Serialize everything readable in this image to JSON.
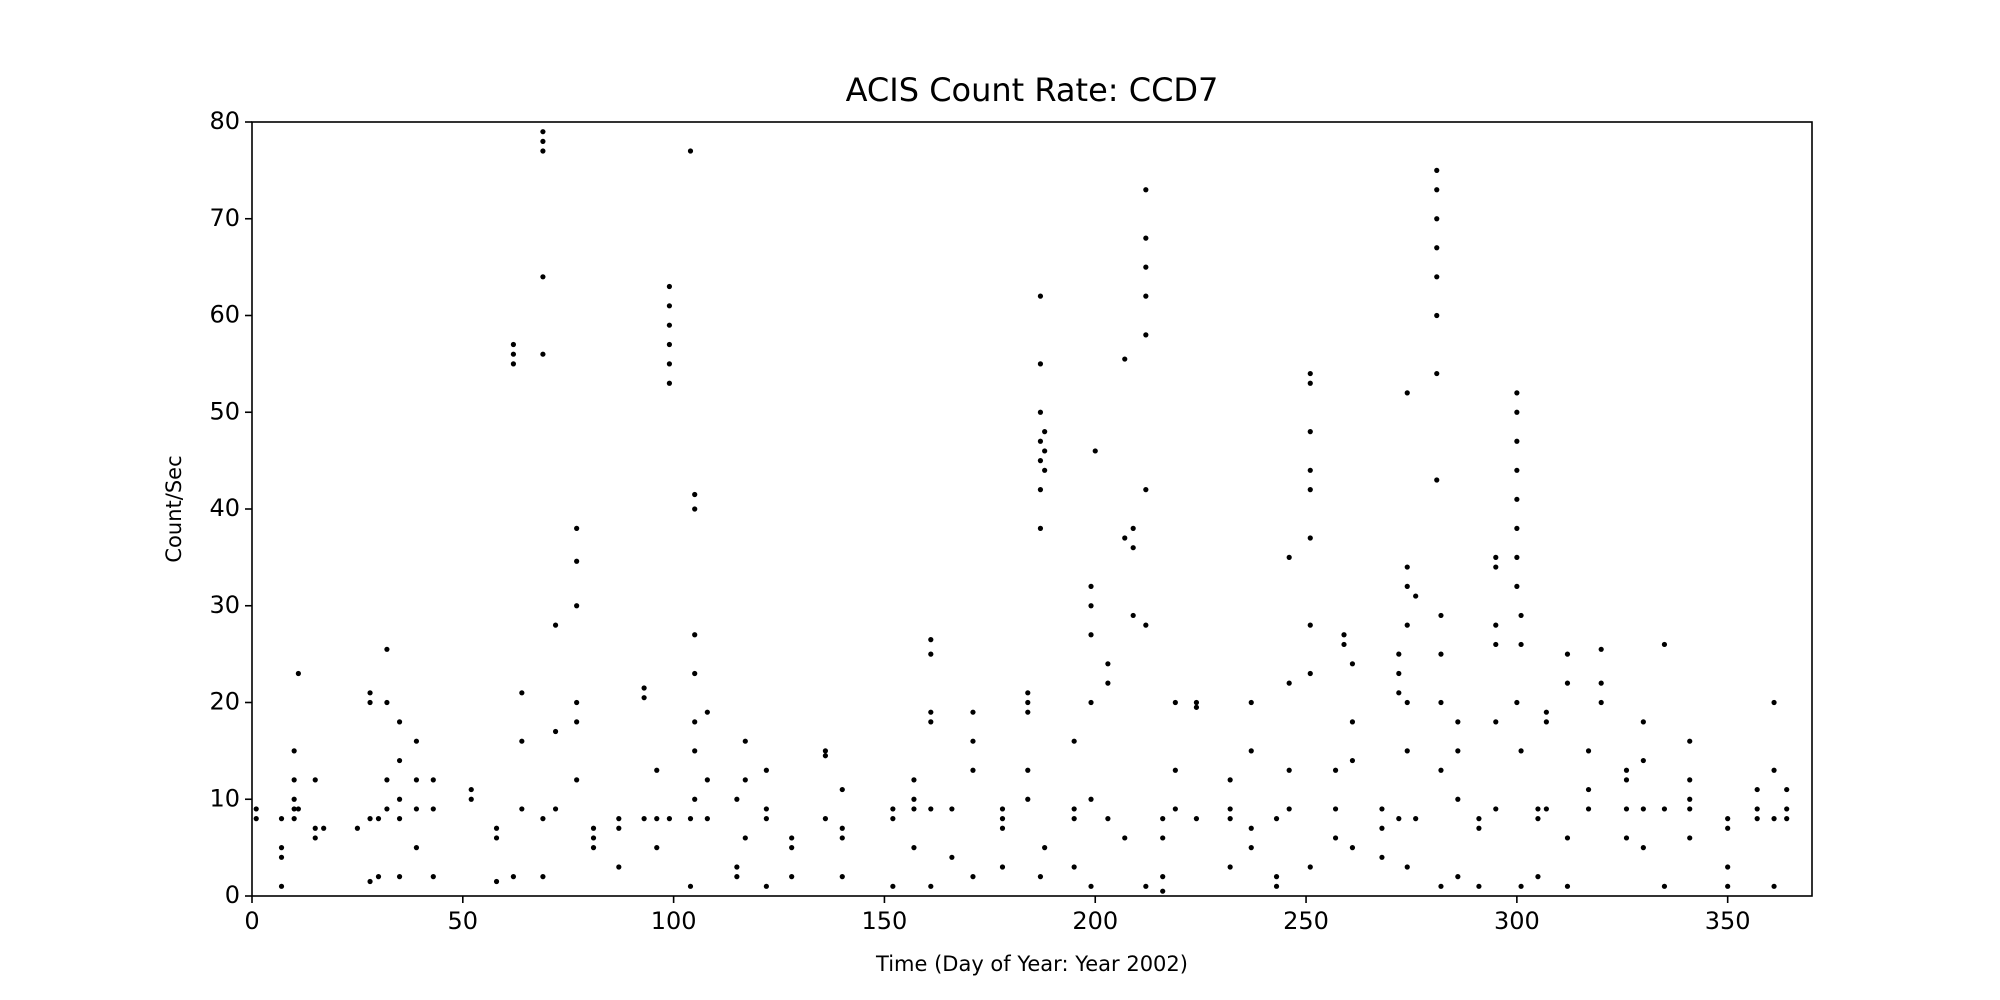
{
  "chart_data": {
    "type": "scatter",
    "title": "ACIS Count Rate: CCD7",
    "xlabel": "Time (Day of Year: Year 2002)",
    "ylabel": "Count/Sec",
    "xlim": [
      0,
      370
    ],
    "xticks": [
      0,
      50,
      100,
      150,
      200,
      250,
      300,
      350
    ],
    "ylim": [
      0,
      80
    ],
    "yticks": [
      0,
      10,
      20,
      30,
      40,
      50,
      60,
      70,
      80
    ],
    "color": "#000000",
    "x": [
      1,
      1,
      7,
      7,
      7,
      7,
      10,
      10,
      10,
      10,
      10,
      11,
      11,
      15,
      15,
      15,
      17,
      25,
      28,
      28,
      28,
      28,
      30,
      30,
      32,
      32,
      32,
      32,
      35,
      35,
      35,
      35,
      35,
      39,
      39,
      39,
      39,
      43,
      43,
      43,
      52,
      52,
      58,
      58,
      58,
      62,
      62,
      62,
      62,
      64,
      64,
      64,
      69,
      69,
      69,
      69,
      69,
      69,
      69,
      72,
      72,
      72,
      77,
      77,
      77,
      77,
      77,
      77,
      81,
      81,
      81,
      87,
      87,
      87,
      93,
      93,
      93,
      96,
      96,
      96,
      99,
      99,
      99,
      99,
      99,
      99,
      99,
      104,
      104,
      104,
      105,
      105,
      105,
      105,
      105,
      105,
      105,
      108,
      108,
      108,
      115,
      115,
      115,
      117,
      117,
      117,
      122,
      122,
      122,
      122,
      128,
      128,
      128,
      136,
      136,
      136,
      140,
      140,
      140,
      140,
      152,
      152,
      152,
      157,
      157,
      157,
      157,
      161,
      161,
      161,
      161,
      161,
      161,
      166,
      166,
      171,
      171,
      171,
      171,
      178,
      178,
      178,
      178,
      184,
      184,
      184,
      184,
      184,
      187,
      187,
      187,
      187,
      187,
      187,
      187,
      187,
      188,
      188,
      188,
      188,
      195,
      195,
      195,
      195,
      199,
      199,
      199,
      199,
      199,
      199,
      200,
      203,
      203,
      203,
      207,
      207,
      207,
      209,
      209,
      209,
      212,
      212,
      212,
      212,
      212,
      212,
      212,
      212,
      216,
      216,
      216,
      216,
      219,
      219,
      219,
      224,
      224,
      224,
      232,
      232,
      232,
      232,
      237,
      237,
      237,
      237,
      243,
      243,
      243,
      246,
      246,
      246,
      246,
      251,
      251,
      251,
      251,
      251,
      251,
      251,
      251,
      251,
      257,
      257,
      257,
      259,
      259,
      261,
      261,
      261,
      261,
      268,
      268,
      268,
      272,
      272,
      272,
      272,
      274,
      274,
      274,
      274,
      274,
      274,
      274,
      276,
      276,
      281,
      281,
      281,
      281,
      281,
      281,
      281,
      281,
      282,
      282,
      282,
      282,
      282,
      286,
      286,
      286,
      286,
      291,
      291,
      291,
      295,
      295,
      295,
      295,
      295,
      295,
      300,
      300,
      300,
      300,
      300,
      300,
      300,
      300,
      300,
      301,
      301,
      301,
      301,
      305,
      305,
      305,
      307,
      307,
      307,
      312,
      312,
      312,
      312,
      317,
      317,
      317,
      320,
      320,
      320,
      326,
      326,
      326,
      326,
      330,
      330,
      330,
      330,
      335,
      335,
      335,
      341,
      341,
      341,
      341,
      341,
      350,
      350,
      350,
      350,
      357,
      357,
      357,
      361,
      361,
      361,
      361,
      364,
      364,
      364
    ],
    "values": [
      8,
      9,
      4,
      5,
      1,
      8,
      8,
      9,
      10,
      12,
      15,
      23,
      9,
      6,
      7,
      12,
      7,
      7,
      8,
      21,
      20,
      1.5,
      8,
      2,
      9,
      20,
      25.5,
      12,
      8,
      10,
      14,
      18,
      2,
      9,
      12,
      16,
      5,
      9,
      12,
      2,
      10,
      11,
      6,
      7,
      1.5,
      55,
      56,
      57,
      2,
      21,
      16,
      9,
      77,
      78,
      79,
      64,
      56,
      8,
      2,
      17,
      28,
      9,
      12,
      18,
      20,
      30,
      34.6,
      38,
      6,
      7,
      5,
      7,
      8,
      3,
      20.5,
      21.5,
      8,
      8,
      13,
      5,
      53,
      55,
      57,
      59,
      61,
      63,
      8,
      77,
      8,
      1,
      27,
      23,
      18,
      15,
      40,
      41.5,
      10,
      19,
      12,
      8,
      2,
      3,
      10,
      16,
      12,
      6,
      8,
      9,
      1,
      13,
      6,
      5,
      2,
      15,
      14.5,
      8,
      6,
      7,
      11,
      2,
      8,
      9,
      1,
      9,
      10,
      12,
      5,
      26.5,
      25,
      19,
      18,
      9,
      1,
      9,
      4,
      13,
      16,
      19,
      2,
      8,
      9,
      7,
      3,
      20,
      19,
      21,
      10,
      13,
      38,
      42,
      45,
      47,
      50,
      55,
      62,
      2,
      46,
      48,
      44,
      5,
      9,
      8,
      16,
      3,
      32,
      30,
      27,
      20,
      10,
      1,
      46,
      24,
      22,
      8,
      55.5,
      37,
      6,
      38,
      36,
      29,
      58,
      62,
      65,
      68,
      73,
      42,
      28,
      1,
      8,
      6,
      2,
      0.5,
      13,
      20,
      9,
      20,
      19.5,
      8,
      9,
      8,
      3,
      12,
      20,
      15,
      7,
      5,
      8,
      1,
      2,
      35,
      22,
      13,
      9,
      54,
      53,
      48,
      44,
      42,
      37,
      28,
      23,
      3,
      9,
      6,
      13,
      27,
      26,
      24,
      18,
      14,
      5,
      9,
      7,
      4,
      25,
      23,
      21,
      8,
      52,
      34,
      32,
      28,
      20,
      15,
      3,
      31,
      8,
      75,
      73,
      70,
      67,
      64,
      60,
      54,
      43,
      29,
      25,
      20,
      13,
      1,
      18,
      15,
      10,
      2,
      8,
      7,
      1,
      35,
      34,
      28,
      26,
      18,
      9,
      52,
      50,
      47,
      44,
      41,
      38,
      35,
      32,
      20,
      29,
      26,
      15,
      1,
      9,
      8,
      2,
      19,
      18,
      9,
      25,
      22,
      6,
      1,
      15,
      11,
      9,
      25.5,
      22,
      20,
      9,
      13,
      12,
      6,
      18,
      14,
      9,
      5,
      26,
      9,
      1,
      9,
      16,
      6,
      12,
      10,
      7,
      8,
      3,
      1,
      9,
      8,
      11,
      20,
      13,
      8,
      1,
      8,
      9,
      11
    ]
  }
}
